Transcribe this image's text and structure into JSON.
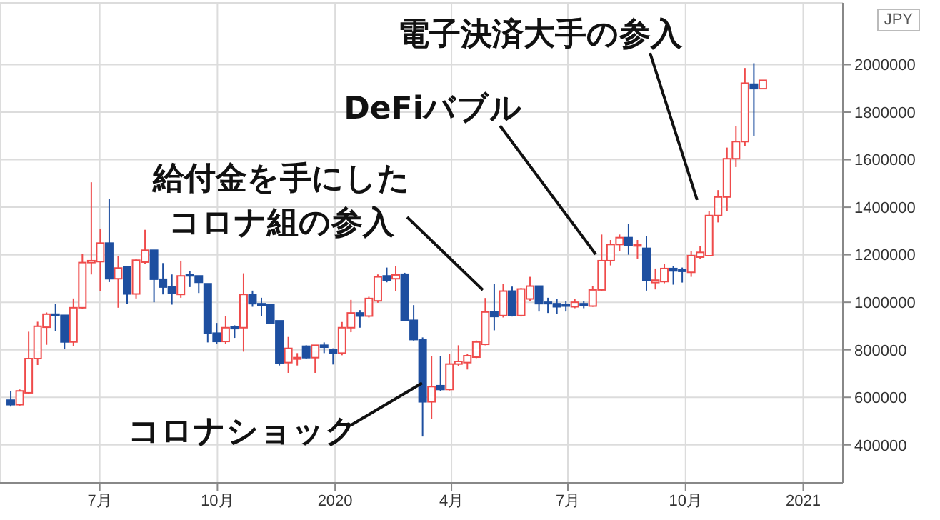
{
  "chart_data": {
    "type": "candlestick",
    "ylabel": "JPY",
    "x": [
      "2019-04-22",
      "2019-04-29",
      "2019-05-06",
      "2019-05-13",
      "2019-05-20",
      "2019-05-27",
      "2019-06-03",
      "2019-06-10",
      "2019-06-17",
      "2019-06-24",
      "2019-07-01",
      "2019-07-08",
      "2019-07-15",
      "2019-07-22",
      "2019-07-29",
      "2019-08-05",
      "2019-08-12",
      "2019-08-19",
      "2019-08-26",
      "2019-09-02",
      "2019-09-09",
      "2019-09-16",
      "2019-09-23",
      "2019-09-30",
      "2019-10-07",
      "2019-10-14",
      "2019-10-21",
      "2019-10-28",
      "2019-11-04",
      "2019-11-11",
      "2019-11-18",
      "2019-11-25",
      "2019-12-02",
      "2019-12-09",
      "2019-12-16",
      "2019-12-23",
      "2019-12-30",
      "2020-01-06",
      "2020-01-13",
      "2020-01-20",
      "2020-01-27",
      "2020-02-03",
      "2020-02-10",
      "2020-02-17",
      "2020-02-24",
      "2020-03-02",
      "2020-03-09",
      "2020-03-16",
      "2020-03-23",
      "2020-03-30",
      "2020-04-06",
      "2020-04-13",
      "2020-04-20",
      "2020-04-27",
      "2020-05-04",
      "2020-05-11",
      "2020-05-18",
      "2020-05-25",
      "2020-06-01",
      "2020-06-08",
      "2020-06-15",
      "2020-06-22",
      "2020-06-29",
      "2020-07-06",
      "2020-07-13",
      "2020-07-20",
      "2020-07-27",
      "2020-08-03",
      "2020-08-10",
      "2020-08-17",
      "2020-08-24",
      "2020-08-31",
      "2020-09-07",
      "2020-09-14",
      "2020-09-21",
      "2020-09-28",
      "2020-10-05",
      "2020-10-12",
      "2020-10-19",
      "2020-10-26",
      "2020-11-02",
      "2020-11-09",
      "2020-11-16",
      "2020-11-23",
      "2020-11-30"
    ],
    "ohlc": [
      [
        588000,
        627000,
        561000,
        569000
      ],
      [
        569000,
        633000,
        565000,
        627000
      ],
      [
        619000,
        876000,
        614000,
        763000
      ],
      [
        763000,
        918000,
        736000,
        899000
      ],
      [
        895000,
        957000,
        821000,
        950000
      ],
      [
        950000,
        992000,
        880000,
        945000
      ],
      [
        945000,
        945000,
        802000,
        833000
      ],
      [
        833000,
        1016000,
        817000,
        977000
      ],
      [
        977000,
        1202000,
        973000,
        1167000
      ],
      [
        1167000,
        1505000,
        1117000,
        1175000
      ],
      [
        1171000,
        1307000,
        1047000,
        1249000
      ],
      [
        1249000,
        1435000,
        1085000,
        1099000
      ],
      [
        1099000,
        1196000,
        977000,
        1144000
      ],
      [
        1148000,
        1148000,
        992000,
        1035000
      ],
      [
        1035000,
        1183000,
        1016000,
        1177000
      ],
      [
        1169000,
        1305000,
        1161000,
        1219000
      ],
      [
        1219000,
        1219000,
        1000000,
        1097000
      ],
      [
        1097000,
        1165000,
        1033000,
        1064000
      ],
      [
        1064000,
        1117000,
        990000,
        1037000
      ],
      [
        1033000,
        1175000,
        1019000,
        1111000
      ],
      [
        1117000,
        1130000,
        1064000,
        1111000
      ],
      [
        1111000,
        1111000,
        1039000,
        1084000
      ],
      [
        1078000,
        1078000,
        831000,
        870000
      ],
      [
        870000,
        913000,
        825000,
        835000
      ],
      [
        835000,
        942000,
        825000,
        893000
      ],
      [
        897000,
        903000,
        850000,
        889000
      ],
      [
        893000,
        1122000,
        792000,
        1033000
      ],
      [
        1033000,
        1049000,
        981000,
        994000
      ],
      [
        994000,
        1019000,
        942000,
        986000
      ],
      [
        990000,
        990000,
        909000,
        913000
      ],
      [
        922000,
        922000,
        734000,
        742000
      ],
      [
        746000,
        854000,
        703000,
        806000
      ],
      [
        761000,
        786000,
        734000,
        767000
      ],
      [
        815000,
        819000,
        761000,
        767000
      ],
      [
        767000,
        819000,
        703000,
        819000
      ],
      [
        819000,
        831000,
        786000,
        811000
      ],
      [
        800000,
        806000,
        738000,
        786000
      ],
      [
        786000,
        917000,
        777000,
        893000
      ],
      [
        893000,
        1010000,
        874000,
        955000
      ],
      [
        955000,
        967000,
        893000,
        942000
      ],
      [
        942000,
        1023000,
        936000,
        1016000
      ],
      [
        1006000,
        1117000,
        998000,
        1107000
      ],
      [
        1111000,
        1146000,
        1084000,
        1092000
      ],
      [
        1099000,
        1153000,
        1047000,
        1115000
      ],
      [
        1118000,
        1124000,
        920000,
        924000
      ],
      [
        924000,
        988000,
        839000,
        843000
      ],
      [
        843000,
        852000,
        435000,
        581000
      ],
      [
        581000,
        775000,
        509000,
        645000
      ],
      [
        649000,
        775000,
        625000,
        633000
      ],
      [
        633000,
        781000,
        629000,
        740000
      ],
      [
        740000,
        819000,
        730000,
        751000
      ],
      [
        746000,
        784000,
        717000,
        775000
      ],
      [
        769000,
        839000,
        765000,
        833000
      ],
      [
        823000,
        1018000,
        819000,
        959000
      ],
      [
        959000,
        1076000,
        882000,
        940000
      ],
      [
        944000,
        1076000,
        936000,
        1047000
      ],
      [
        1047000,
        1066000,
        940000,
        944000
      ],
      [
        944000,
        1060000,
        940000,
        1056000
      ],
      [
        1014000,
        1107000,
        1006000,
        1068000
      ],
      [
        1068000,
        1068000,
        961000,
        994000
      ],
      [
        1000000,
        1019000,
        955000,
        994000
      ],
      [
        994000,
        1014000,
        951000,
        981000
      ],
      [
        990000,
        1006000,
        961000,
        984000
      ],
      [
        981000,
        1014000,
        975000,
        1000000
      ],
      [
        994000,
        1006000,
        975000,
        986000
      ],
      [
        984000,
        1068000,
        981000,
        1052000
      ],
      [
        1052000,
        1285000,
        1049000,
        1175000
      ],
      [
        1175000,
        1262000,
        1155000,
        1243000
      ],
      [
        1243000,
        1285000,
        1214000,
        1272000
      ],
      [
        1272000,
        1330000,
        1200000,
        1239000
      ],
      [
        1239000,
        1262000,
        1184000,
        1243000
      ],
      [
        1227000,
        1278000,
        1049000,
        1091000
      ],
      [
        1083000,
        1142000,
        1054000,
        1093000
      ],
      [
        1087000,
        1161000,
        1080000,
        1142000
      ],
      [
        1142000,
        1152000,
        1074000,
        1132000
      ],
      [
        1138000,
        1146000,
        1083000,
        1130000
      ],
      [
        1126000,
        1216000,
        1107000,
        1196000
      ],
      [
        1190000,
        1235000,
        1181000,
        1210000
      ],
      [
        1196000,
        1384000,
        1196000,
        1365000
      ],
      [
        1365000,
        1472000,
        1336000,
        1443000
      ],
      [
        1443000,
        1651000,
        1384000,
        1604000
      ],
      [
        1604000,
        1740000,
        1569000,
        1676000
      ],
      [
        1676000,
        1986000,
        1656000,
        1922000
      ],
      [
        1918000,
        2006000,
        1701000,
        1899000
      ],
      [
        1899000,
        1934000,
        1899000,
        1934000
      ]
    ],
    "colors": [
      "#1e4fa0",
      "#ef4b4b",
      "#ef4b4b",
      "#ef4b4b",
      "#ef4b4b",
      "#1e4fa0",
      "#1e4fa0",
      "#ef4b4b",
      "#ef4b4b",
      "#ef4b4b",
      "#ef4b4b",
      "#1e4fa0",
      "#ef4b4b",
      "#1e4fa0",
      "#ef4b4b",
      "#ef4b4b",
      "#1e4fa0",
      "#1e4fa0",
      "#1e4fa0",
      "#ef4b4b",
      "#1e4fa0",
      "#1e4fa0",
      "#1e4fa0",
      "#1e4fa0",
      "#ef4b4b",
      "#1e4fa0",
      "#ef4b4b",
      "#1e4fa0",
      "#1e4fa0",
      "#1e4fa0",
      "#1e4fa0",
      "#ef4b4b",
      "#ef4b4b",
      "#1e4fa0",
      "#ef4b4b",
      "#1e4fa0",
      "#1e4fa0",
      "#ef4b4b",
      "#ef4b4b",
      "#1e4fa0",
      "#ef4b4b",
      "#ef4b4b",
      "#1e4fa0",
      "#ef4b4b",
      "#1e4fa0",
      "#1e4fa0",
      "#1e4fa0",
      "#ef4b4b",
      "#1e4fa0",
      "#ef4b4b",
      "#ef4b4b",
      "#ef4b4b",
      "#ef4b4b",
      "#ef4b4b",
      "#1e4fa0",
      "#ef4b4b",
      "#1e4fa0",
      "#ef4b4b",
      "#ef4b4b",
      "#1e4fa0",
      "#1e4fa0",
      "#1e4fa0",
      "#1e4fa0",
      "#ef4b4b",
      "#1e4fa0",
      "#ef4b4b",
      "#ef4b4b",
      "#ef4b4b",
      "#ef4b4b",
      "#1e4fa0",
      "#ef4b4b",
      "#1e4fa0",
      "#ef4b4b",
      "#ef4b4b",
      "#1e4fa0",
      "#1e4fa0",
      "#ef4b4b",
      "#ef4b4b",
      "#ef4b4b",
      "#ef4b4b",
      "#ef4b4b",
      "#ef4b4b",
      "#ef4b4b",
      "#1e4fa0",
      "#ef4b4b"
    ],
    "xlim": [
      "2019-04-14",
      "2021-02-01"
    ],
    "xticks": [
      {
        "value": "2019-07-01",
        "label": "7月"
      },
      {
        "value": "2019-10-01",
        "label": "10月"
      },
      {
        "value": "2020-01-01",
        "label": "2020"
      },
      {
        "value": "2020-04-01",
        "label": "4月"
      },
      {
        "value": "2020-07-01",
        "label": "7月"
      },
      {
        "value": "2020-10-01",
        "label": "10月"
      },
      {
        "value": "2021-01-01",
        "label": "2021"
      }
    ],
    "ylim": [
      240000,
      2260000
    ],
    "yticks": [
      400000,
      600000,
      800000,
      1000000,
      1200000,
      1400000,
      1600000,
      1800000,
      2000000
    ],
    "grid": true,
    "annotations": [
      "電子決済大手の参入",
      "DeFiバブル",
      "給付金を手にしたコロナ組の参入",
      {
        "text": "コロナショック",
        "x": "2020-03-09",
        "y": 660000
      }
    ]
  }
}
